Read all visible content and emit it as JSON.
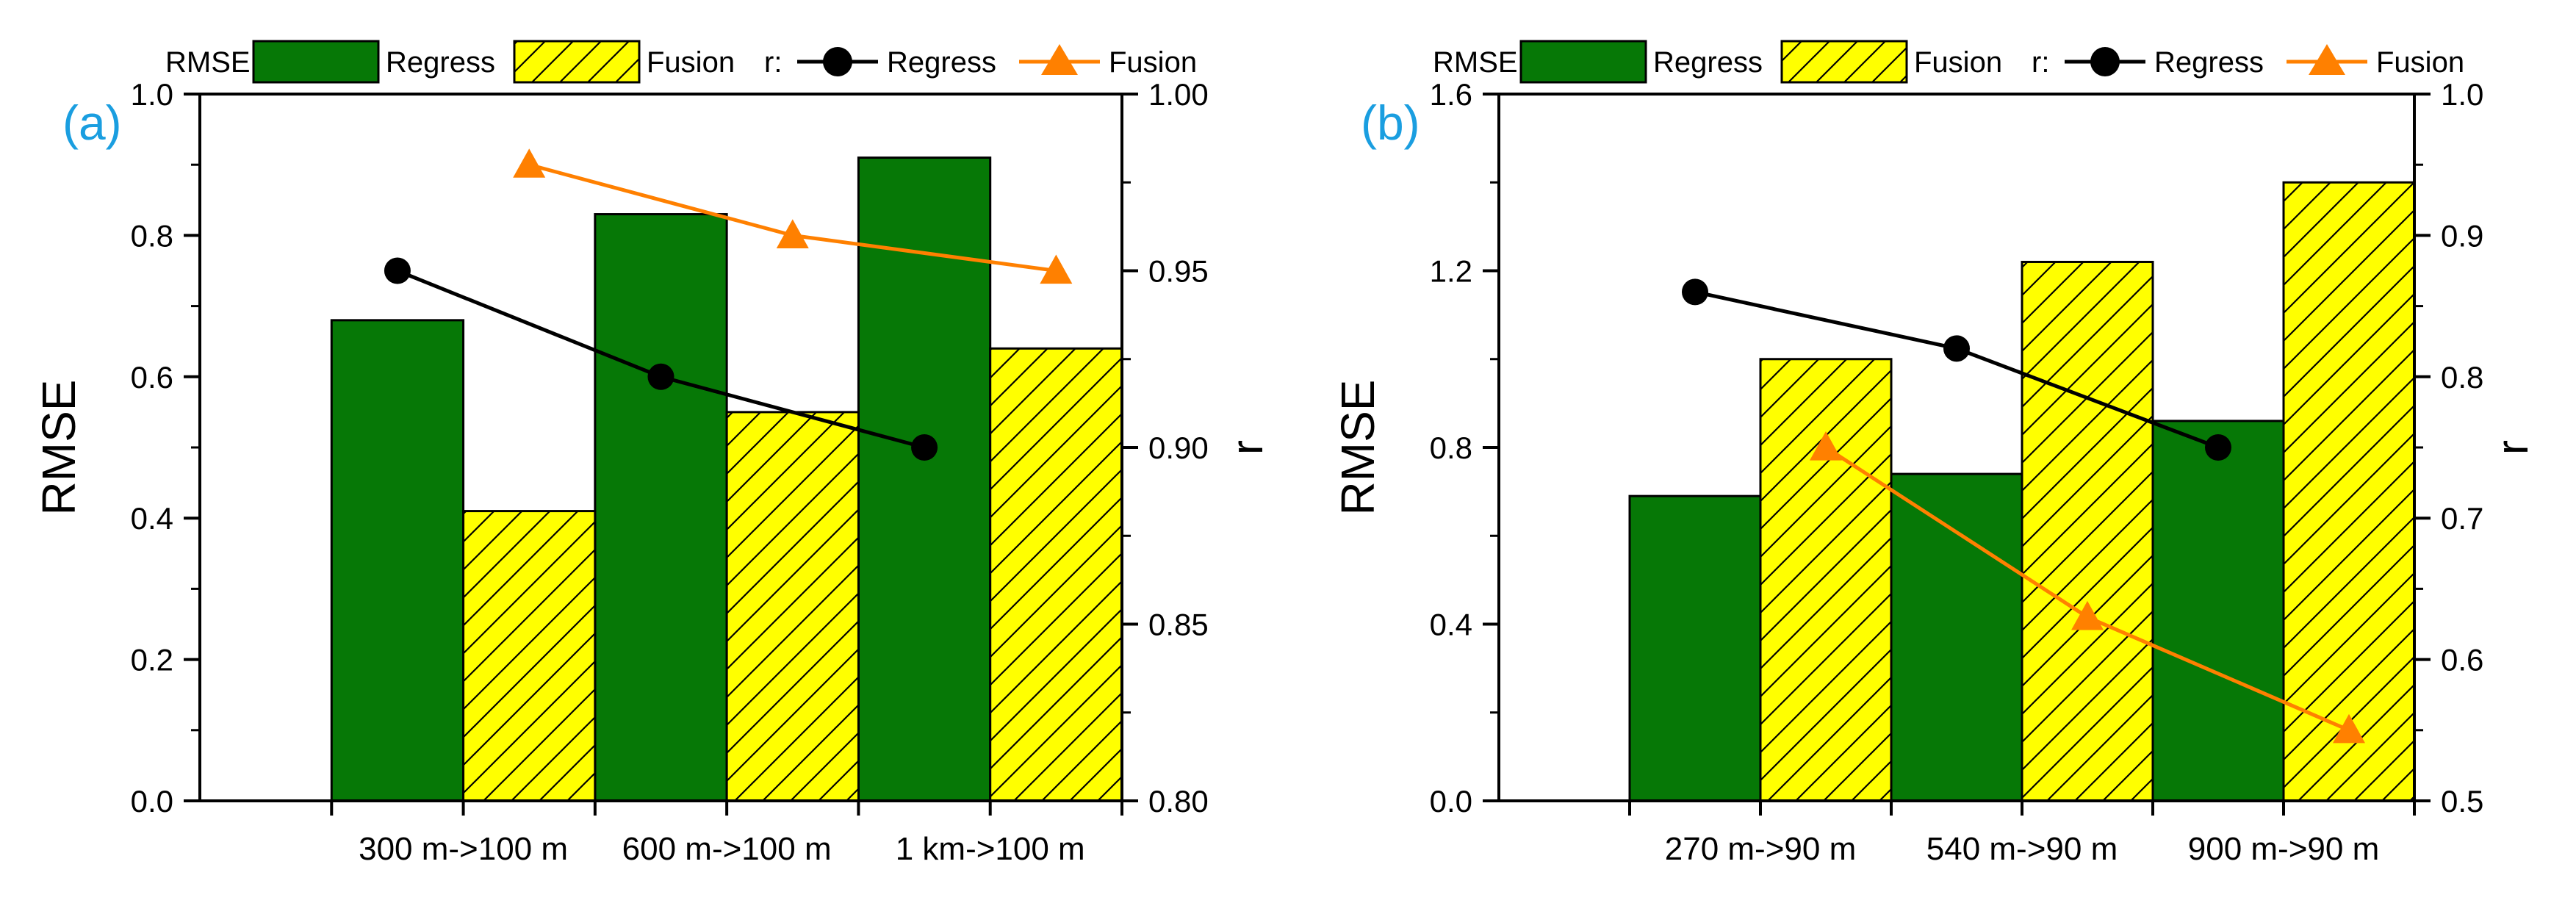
{
  "colors": {
    "regress_bar": "#067806",
    "fusion_bar": "#ffff00",
    "regress_line": "#000000",
    "fusion_line": "#ff8000",
    "panel_label": "#1a9ee0",
    "axis": "#000000"
  },
  "chart_data": [
    {
      "type": "bar",
      "panel_label": "(a)",
      "legend": {
        "rmse_label": "RMSE:",
        "r_label": "r:",
        "regress": "Regress",
        "fusion": "Fusion",
        "placement": "top"
      },
      "categories": [
        "300 m->100 m",
        "600 m->100 m",
        "1 km->100 m"
      ],
      "series": [
        {
          "name": "Regress",
          "kind": "bar",
          "axis": "left",
          "values": [
            0.68,
            0.83,
            0.91
          ]
        },
        {
          "name": "Fusion",
          "kind": "bar",
          "axis": "left",
          "values": [
            0.41,
            0.55,
            0.64
          ]
        },
        {
          "name": "Regress",
          "kind": "line",
          "axis": "right",
          "values": [
            0.95,
            0.92,
            0.9
          ]
        },
        {
          "name": "Fusion",
          "kind": "line",
          "axis": "right",
          "values": [
            0.98,
            0.96,
            0.95
          ]
        }
      ],
      "ylabel": "RMSE",
      "ylim": [
        0,
        1.0
      ],
      "yticks": [
        "0.0",
        "0.2",
        "0.4",
        "0.6",
        "0.8",
        "1.0"
      ],
      "y2label": "r",
      "y2lim": [
        0.8,
        1.0
      ],
      "y2ticks": [
        "0.80",
        "0.85",
        "0.90",
        "0.95",
        "1.00"
      ]
    },
    {
      "type": "bar",
      "panel_label": "(b)",
      "legend": {
        "rmse_label": "RMSE:",
        "r_label": "r:",
        "regress": "Regress",
        "fusion": "Fusion",
        "placement": "top"
      },
      "categories": [
        "270 m->90 m",
        "540 m->90 m",
        "900 m->90 m"
      ],
      "series": [
        {
          "name": "Regress",
          "kind": "bar",
          "axis": "left",
          "values": [
            0.69,
            0.74,
            0.86
          ]
        },
        {
          "name": "Fusion",
          "kind": "bar",
          "axis": "left",
          "values": [
            1.0,
            1.22,
            1.4
          ]
        },
        {
          "name": "Regress",
          "kind": "line",
          "axis": "right",
          "values": [
            0.86,
            0.82,
            0.75
          ]
        },
        {
          "name": "Fusion",
          "kind": "line",
          "axis": "right",
          "values": [
            0.75,
            0.63,
            0.55
          ]
        }
      ],
      "ylabel": "RMSE",
      "ylim": [
        0,
        1.6
      ],
      "yticks": [
        "0.0",
        "0.4",
        "0.8",
        "1.2",
        "1.6"
      ],
      "y2label": "r",
      "y2lim": [
        0.5,
        1.0
      ],
      "y2ticks": [
        "0.5",
        "0.6",
        "0.7",
        "0.8",
        "0.9",
        "1.0"
      ]
    }
  ]
}
